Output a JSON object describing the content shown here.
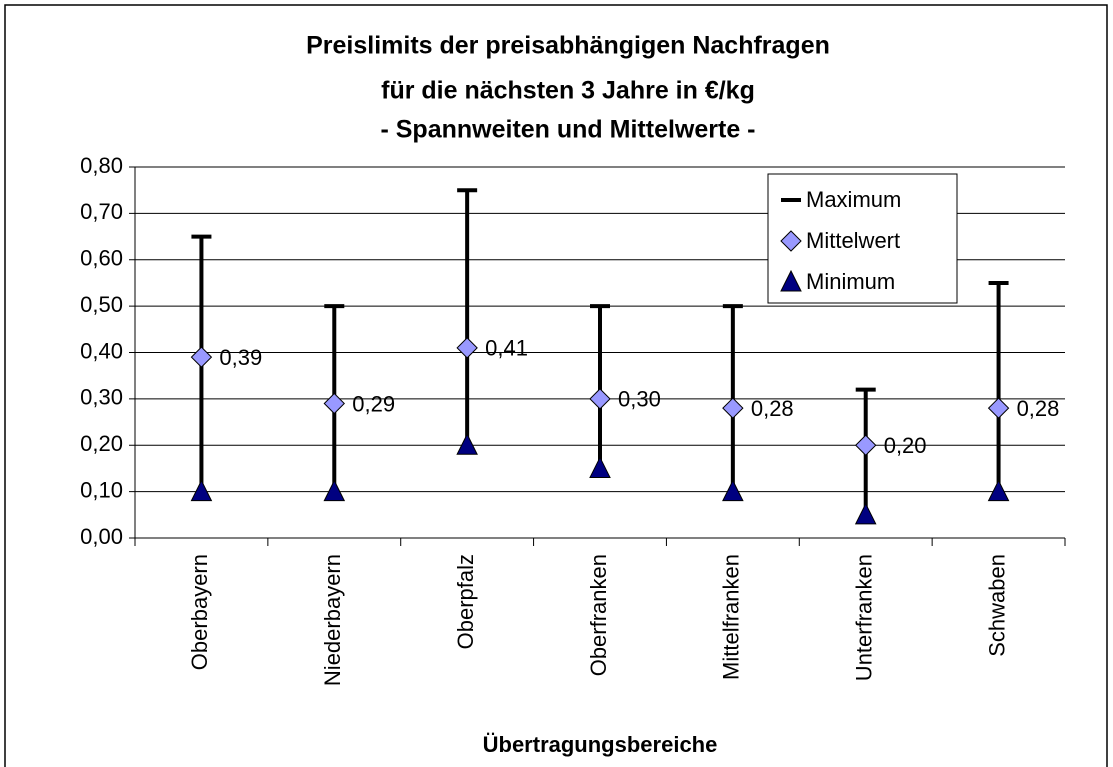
{
  "chart_data": {
    "type": "high-low",
    "title": [
      "Preislimits der preisabhängigen Nachfragen",
      "für die nächsten 3 Jahre in €/kg",
      "- Spannweiten und Mittelwerte -"
    ],
    "x_label": "Übertragungsbereiche",
    "categories": [
      "Oberbayern",
      "Niederbayern",
      "Oberpfalz",
      "Oberfranken",
      "Mittelfranken",
      "Unterfranken",
      "Schwaben"
    ],
    "series": [
      {
        "name": "Maximum",
        "color": "#000000",
        "values": [
          0.65,
          0.5,
          0.75,
          0.5,
          0.5,
          0.32,
          0.55
        ]
      },
      {
        "name": "Mittelwert",
        "color": "#9999ff",
        "values": [
          0.39,
          0.29,
          0.41,
          0.3,
          0.28,
          0.2,
          0.28
        ],
        "value_labels": [
          "0,39",
          "0,29",
          "0,41",
          "0,30",
          "0,28",
          "0,20",
          "0,28"
        ]
      },
      {
        "name": "Minimum",
        "color": "#000080",
        "values": [
          0.1,
          0.1,
          0.2,
          0.15,
          0.1,
          0.05,
          0.1
        ]
      }
    ],
    "ylim": [
      0,
      0.8
    ],
    "yticks": [
      {
        "value": 0,
        "label": "0,00"
      },
      {
        "value": 0.1,
        "label": "0,10"
      },
      {
        "value": 0.2,
        "label": "0,20"
      },
      {
        "value": 0.3,
        "label": "0,30"
      },
      {
        "value": 0.4,
        "label": "0,40"
      },
      {
        "value": 0.5,
        "label": "0,50"
      },
      {
        "value": 0.6,
        "label": "0,60"
      },
      {
        "value": 0.7,
        "label": "0,70"
      },
      {
        "value": 0.8,
        "label": "0,80"
      }
    ],
    "grid": true,
    "legend": "upper right"
  }
}
